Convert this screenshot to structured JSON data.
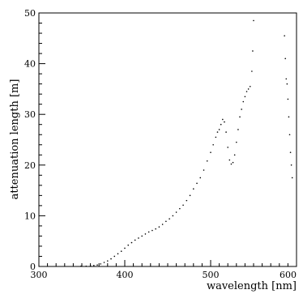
{
  "chart_data": {
    "type": "scatter",
    "title": "",
    "xlabel": "wavelength [nm]",
    "ylabel": "attenuation length [m]",
    "xlim": [
      300,
      600
    ],
    "ylim": [
      0,
      50
    ],
    "x_ticks": [
      {
        "value": 300,
        "label": "300"
      },
      {
        "value": 400,
        "label": "400"
      },
      {
        "value": 500,
        "label": "500"
      },
      {
        "value": 600,
        "label": "600"
      }
    ],
    "y_ticks": [
      {
        "value": 0,
        "label": "0"
      },
      {
        "value": 10,
        "label": "10"
      },
      {
        "value": 20,
        "label": "20"
      },
      {
        "value": 30,
        "label": "30"
      },
      {
        "value": 40,
        "label": "40"
      },
      {
        "value": 50,
        "label": "50"
      }
    ],
    "grid": false,
    "legend": "none",
    "colors": {
      "points": "#000000",
      "axes": "#000000"
    },
    "series": [
      {
        "points": [
          [
            349,
            0.05
          ],
          [
            355,
            0.05
          ],
          [
            360,
            0.1
          ],
          [
            364,
            0.2
          ],
          [
            368,
            0.3
          ],
          [
            372,
            0.5
          ],
          [
            376,
            0.8
          ],
          [
            380,
            1.1
          ],
          [
            384,
            1.5
          ],
          [
            388,
            2.0
          ],
          [
            392,
            2.5
          ],
          [
            396,
            3.0
          ],
          [
            400,
            3.6
          ],
          [
            404,
            4.2
          ],
          [
            408,
            4.7
          ],
          [
            412,
            5.2
          ],
          [
            416,
            5.6
          ],
          [
            420,
            6.0
          ],
          [
            424,
            6.4
          ],
          [
            428,
            6.8
          ],
          [
            432,
            7.1
          ],
          [
            436,
            7.4
          ],
          [
            440,
            7.8
          ],
          [
            444,
            8.3
          ],
          [
            448,
            8.9
          ],
          [
            452,
            9.4
          ],
          [
            456,
            10.0
          ],
          [
            460,
            10.7
          ],
          [
            464,
            11.4
          ],
          [
            468,
            12.1
          ],
          [
            472,
            13.0
          ],
          [
            476,
            14.0
          ],
          [
            480,
            15.3
          ],
          [
            484,
            16.4
          ],
          [
            488,
            17.5
          ],
          [
            492,
            19.0
          ],
          [
            496,
            20.8
          ],
          [
            500,
            22.5
          ],
          [
            503,
            24.0
          ],
          [
            506,
            25.5
          ],
          [
            508,
            26.5
          ],
          [
            510,
            27.0
          ],
          [
            512,
            28.0
          ],
          [
            514,
            29.0
          ],
          [
            516,
            28.5
          ],
          [
            518,
            26.5
          ],
          [
            520,
            23.5
          ],
          [
            522,
            21.0
          ],
          [
            524,
            20.2
          ],
          [
            526,
            20.5
          ],
          [
            528,
            22.0
          ],
          [
            530,
            24.5
          ],
          [
            532,
            27.0
          ],
          [
            534,
            29.5
          ],
          [
            536,
            31.0
          ],
          [
            538,
            32.5
          ],
          [
            540,
            33.5
          ],
          [
            542,
            34.5
          ],
          [
            544,
            35.0
          ],
          [
            546,
            35.5
          ],
          [
            548,
            38.5
          ],
          [
            549,
            42.5
          ],
          [
            550,
            48.5
          ],
          [
            586,
            45.5
          ],
          [
            587,
            41.0
          ],
          [
            588,
            37.0
          ],
          [
            589,
            36.0
          ],
          [
            590,
            33.0
          ],
          [
            591,
            29.5
          ],
          [
            592,
            26.0
          ],
          [
            593,
            22.5
          ],
          [
            594,
            20.0
          ],
          [
            595,
            17.5
          ]
        ]
      }
    ]
  }
}
